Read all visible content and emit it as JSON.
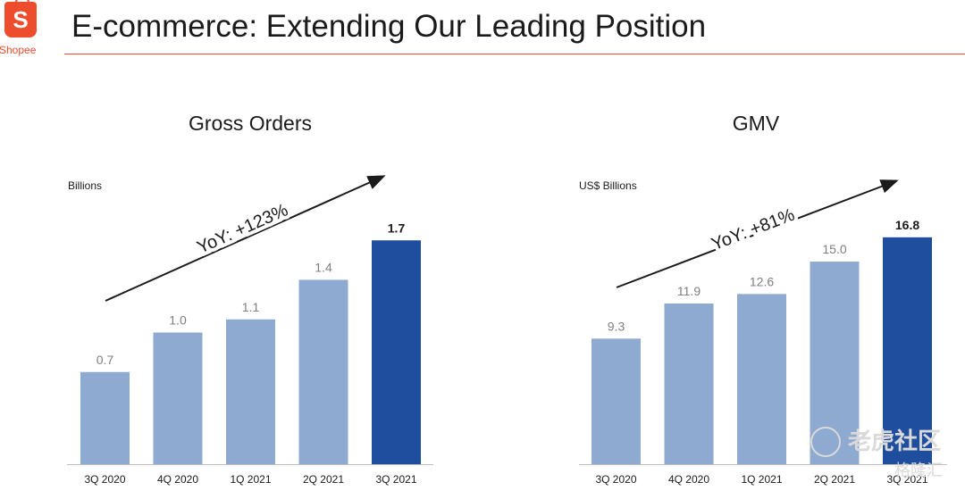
{
  "header": {
    "logo_letter": "S",
    "logo_text": "Shopee",
    "title": "E-commerce: Extending Our Leading Position"
  },
  "watermark": {
    "line1": "老虎社区",
    "line2": "格隆汇"
  },
  "colors": {
    "brand": "#ee4d2d",
    "bar_light": "#8faad1",
    "bar_dark": "#1f4e9e",
    "value_label_light": "#7f7f7f",
    "value_label_dark": "#1a1a1a"
  },
  "chart_data": [
    {
      "type": "bar",
      "title": "Gross Orders",
      "ylabel": "Billions",
      "categories": [
        "3Q 2020",
        "4Q 2020",
        "1Q 2021",
        "2Q 2021",
        "3Q 2021"
      ],
      "values": [
        0.7,
        1.0,
        1.1,
        1.4,
        1.7
      ],
      "value_labels": [
        "0.7",
        "1.0",
        "1.1",
        "1.4",
        "1.7"
      ],
      "highlight_index": 4,
      "ylim": [
        0,
        2.0
      ],
      "grid": false,
      "annotation": "YoY: +123%"
    },
    {
      "type": "bar",
      "title": "GMV",
      "ylabel": "US$ Billions",
      "categories": [
        "3Q 2020",
        "4Q 2020",
        "1Q 2021",
        "2Q 2021",
        "3Q 2021"
      ],
      "values": [
        9.3,
        11.9,
        12.6,
        15.0,
        16.8
      ],
      "value_labels": [
        "9.3",
        "11.9",
        "12.6",
        "15.0",
        "16.8"
      ],
      "highlight_index": 4,
      "ylim": [
        0,
        19.5
      ],
      "grid": false,
      "annotation": "YoY: +81%"
    }
  ]
}
